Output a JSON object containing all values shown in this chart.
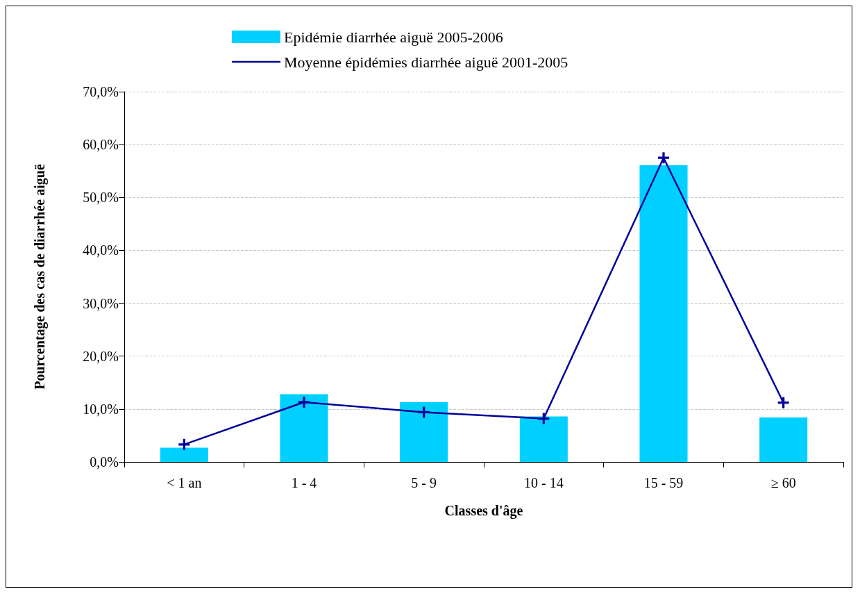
{
  "chart_data": {
    "type": "bar",
    "xlabel": "Classes d'âge",
    "ylabel": "Pourcentage des cas de diarrhée aiguë",
    "categories": [
      "< 1 an",
      "1 - 4",
      "5 - 9",
      "10 - 14",
      "15 - 59",
      "≥ 60"
    ],
    "series": [
      {
        "name": "Epidémie diarrhée aiguë 2005-2006",
        "color": "#00d0ff",
        "values": [
          2.7,
          12.8,
          11.3,
          8.6,
          56.1,
          8.4
        ]
      },
      {
        "name": "Moyenne épidémies diarrhée aiguë 2001-2005",
        "type": "line",
        "color": "#000099",
        "marker": "cross",
        "values": [
          3.3,
          11.3,
          9.4,
          8.2,
          57.5,
          11.2
        ]
      }
    ],
    "ylim": [
      0,
      70
    ],
    "yticks": [
      {
        "value": 0,
        "label": "0,0%"
      },
      {
        "value": 10,
        "label": "10,0%"
      },
      {
        "value": 20,
        "label": "20,0%"
      },
      {
        "value": 30,
        "label": "30,0%"
      },
      {
        "value": 40,
        "label": "40,0%"
      },
      {
        "value": 50,
        "label": "50,0%"
      },
      {
        "value": 60,
        "label": "60,0%"
      },
      {
        "value": 70,
        "label": "70,0%"
      }
    ],
    "grid": "y",
    "legend": "top"
  }
}
